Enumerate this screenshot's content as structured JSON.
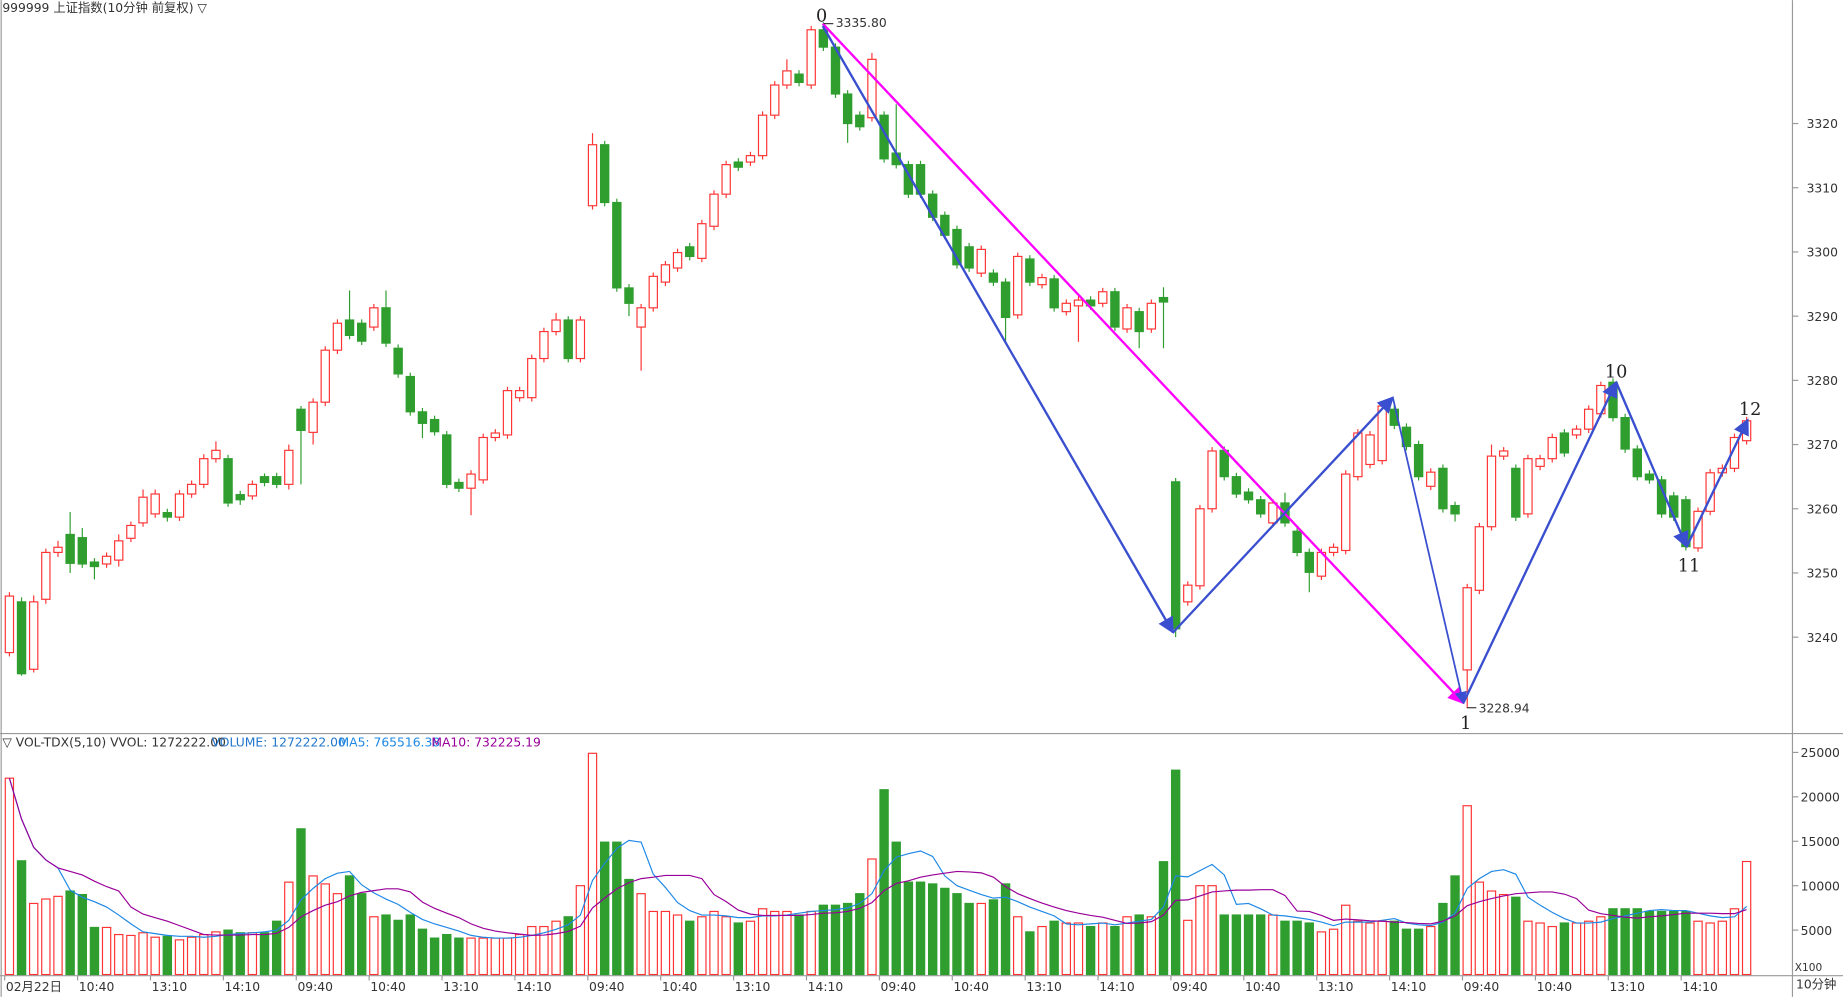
{
  "chart_data": [
    {
      "type": "candlestick",
      "title": "999999 上证指数(10分钟 前复权) ▽",
      "categories": [
        "02月22日",
        null,
        null,
        null,
        null,
        null,
        "10:40",
        null,
        null,
        null,
        null,
        null,
        "13:10",
        null,
        null,
        null,
        null,
        null,
        "14:10",
        null,
        null,
        null,
        null,
        null,
        "09:40",
        null,
        null,
        null,
        null,
        null,
        "10:40",
        null,
        null,
        null,
        null,
        null,
        "13:10",
        null,
        null,
        null,
        null,
        null,
        "14:10",
        null,
        null,
        null,
        null,
        null,
        "09:40",
        null,
        null,
        null,
        null,
        null,
        "10:40",
        null,
        null,
        null,
        null,
        null,
        "13:10",
        null,
        null,
        null,
        null,
        null,
        "14:10",
        null,
        null,
        null,
        null,
        null,
        "09:40",
        null,
        null,
        null,
        null,
        null,
        "10:40",
        null,
        null,
        null,
        null,
        null,
        "13:10",
        null,
        null,
        null,
        null,
        null,
        "14:10",
        null,
        null,
        null,
        null,
        null,
        "09:40",
        null,
        null,
        null,
        null,
        null,
        "10:40",
        null,
        null,
        null,
        null,
        null,
        "13:10",
        null,
        null,
        null,
        null,
        null,
        "14:10",
        null,
        null,
        null,
        null,
        null,
        "09:40",
        null,
        null,
        null,
        null,
        null,
        "10:40",
        null,
        null,
        null,
        null,
        null,
        "13:10",
        null,
        null,
        null,
        null,
        null,
        "14:10",
        null,
        null,
        null,
        null,
        null
      ],
      "open": [
        3237.6,
        3245.5,
        3235.0,
        3245.9,
        3253.2,
        3256.0,
        3255.5,
        3251.7,
        3251.4,
        3252.0,
        3255.4,
        3257.8,
        3259.2,
        3259.4,
        3258.7,
        3262.3,
        3263.8,
        3267.8,
        3267.8,
        3262.2,
        3262.0,
        3265.0,
        3265.0,
        3263.8,
        3275.5,
        3271.9,
        3276.6,
        3284.7,
        3289.4,
        3288.9,
        3288.3,
        3291.3,
        3285.0,
        3280.6,
        3275.1,
        3273.9,
        3271.5,
        3264.1,
        3263.2,
        3264.5,
        3271.1,
        3271.5,
        3277.3,
        3277.3,
        3283.4,
        3287.6,
        3289.4,
        3283.4,
        3307.2,
        3316.7,
        3307.7,
        3294.4,
        3288.3,
        3291.3,
        3295.3,
        3297.5,
        3300.8,
        3299.0,
        3304.0,
        3309.0,
        3314.0,
        3314.0,
        3315.0,
        3321.3,
        3326.0,
        3327.7,
        3326.0,
        3334.6,
        3331.9,
        3324.6,
        3321.3,
        3320.9,
        3321.3,
        3315.4,
        3313.6,
        3313.6,
        3309.0,
        3305.7,
        3303.5,
        3300.8,
        3296.7,
        3296.7,
        3295.3,
        3290.2,
        3298.9,
        3294.9,
        3295.8,
        3290.7,
        3291.6,
        3292.5,
        3292.0,
        3293.8,
        3288.0,
        3290.7,
        3288.0,
        3292.9,
        3264.2,
        3245.5,
        3248.0,
        3260.0,
        3269.1,
        3265.0,
        3262.6,
        3261.4,
        3257.8,
        3260.9,
        3256.5,
        3253.2,
        3249.5,
        3253.2,
        3253.5,
        3265.0,
        3266.9,
        3267.5,
        3275.5,
        3272.7,
        3270.0,
        3263.5,
        3266.3,
        3260.5,
        3234.9,
        3247.3,
        3257.2,
        3268.2,
        3266.3,
        3259.2,
        3266.6,
        3267.8,
        3271.8,
        3271.5,
        3272.4,
        3274.8,
        3279.7,
        3274.2,
        3269.3,
        3265.4,
        3264.5,
        3262.0,
        3261.4,
        3253.9,
        3259.6,
        3265.6,
        3266.3,
        3270.6
      ],
      "high": [
        3247.0,
        3246.2,
        3246.5,
        3253.8,
        3255.0,
        3259.5,
        3257.0,
        3252.3,
        3253.2,
        3256.0,
        3258.0,
        3263.0,
        3263.0,
        3260.0,
        3262.9,
        3264.4,
        3268.5,
        3270.5,
        3268.4,
        3262.8,
        3264.4,
        3265.5,
        3265.6,
        3270.0,
        3276.0,
        3277.2,
        3285.3,
        3289.5,
        3294.0,
        3289.5,
        3291.9,
        3294.0,
        3285.6,
        3281.2,
        3275.7,
        3274.5,
        3272.1,
        3264.7,
        3266.0,
        3271.7,
        3272.4,
        3279.0,
        3279.0,
        3284.0,
        3288.2,
        3290.5,
        3290.0,
        3290.0,
        3318.5,
        3317.3,
        3308.3,
        3295.0,
        3291.9,
        3296.8,
        3298.6,
        3300.5,
        3301.4,
        3305.0,
        3309.6,
        3314.2,
        3314.6,
        3315.6,
        3321.9,
        3326.6,
        3330.0,
        3328.3,
        3335.2,
        3335.8,
        3332.5,
        3325.2,
        3321.9,
        3331.0,
        3321.9,
        3323.0,
        3314.2,
        3314.2,
        3309.6,
        3306.3,
        3304.1,
        3301.4,
        3301.0,
        3297.3,
        3295.9,
        3299.9,
        3299.5,
        3296.6,
        3296.4,
        3292.6,
        3293.1,
        3293.1,
        3294.4,
        3294.4,
        3291.9,
        3291.3,
        3292.6,
        3294.5,
        3264.8,
        3248.7,
        3260.6,
        3269.6,
        3269.7,
        3265.6,
        3263.2,
        3262.0,
        3261.5,
        3262.5,
        3257.1,
        3253.8,
        3253.8,
        3254.6,
        3266.0,
        3272.4,
        3272.1,
        3276.6,
        3276.1,
        3273.3,
        3270.6,
        3266.3,
        3266.9,
        3261.1,
        3248.3,
        3257.8,
        3270.0,
        3269.6,
        3266.9,
        3268.4,
        3268.4,
        3271.7,
        3272.4,
        3273.0,
        3276.1,
        3279.8,
        3280.3,
        3274.8,
        3269.9,
        3266.0,
        3265.1,
        3262.6,
        3262.0,
        3260.2,
        3266.2,
        3266.9,
        3271.7,
        3274.3
      ],
      "low": [
        3237.0,
        3234.0,
        3234.5,
        3245.2,
        3252.5,
        3250.0,
        3250.8,
        3249.0,
        3250.8,
        3251.0,
        3254.8,
        3257.2,
        3258.6,
        3258.0,
        3258.1,
        3261.7,
        3263.2,
        3267.2,
        3260.3,
        3260.6,
        3261.4,
        3263.5,
        3263.2,
        3263.0,
        3263.8,
        3270.0,
        3276.0,
        3284.1,
        3286.4,
        3285.5,
        3287.7,
        3285.2,
        3280.4,
        3274.5,
        3271.0,
        3271.4,
        3263.2,
        3262.6,
        3259.0,
        3263.9,
        3270.5,
        3270.9,
        3276.7,
        3276.7,
        3282.8,
        3287.0,
        3282.8,
        3282.8,
        3306.6,
        3307.1,
        3293.8,
        3290.0,
        3281.5,
        3290.7,
        3294.7,
        3296.9,
        3298.7,
        3298.4,
        3303.4,
        3308.4,
        3312.6,
        3313.4,
        3314.4,
        3320.7,
        3325.4,
        3325.8,
        3325.4,
        3331.3,
        3324.0,
        3317.0,
        3318.9,
        3320.3,
        3313.9,
        3313.0,
        3308.4,
        3308.4,
        3304.8,
        3302.0,
        3297.4,
        3296.9,
        3296.1,
        3294.7,
        3286.0,
        3289.6,
        3294.7,
        3294.3,
        3290.7,
        3290.1,
        3286.0,
        3291.0,
        3291.4,
        3287.7,
        3287.4,
        3285.0,
        3287.4,
        3285.0,
        3240.0,
        3244.9,
        3247.4,
        3259.4,
        3264.4,
        3261.7,
        3260.8,
        3258.6,
        3257.2,
        3257.2,
        3252.6,
        3247.0,
        3248.9,
        3252.6,
        3252.9,
        3264.4,
        3266.3,
        3266.9,
        3272.4,
        3269.1,
        3264.4,
        3262.9,
        3259.4,
        3258.0,
        3228.94,
        3246.7,
        3256.6,
        3267.6,
        3258.1,
        3258.6,
        3266.0,
        3267.2,
        3268.1,
        3270.9,
        3271.8,
        3274.2,
        3273.6,
        3268.7,
        3264.4,
        3263.9,
        3258.6,
        3258.1,
        3253.5,
        3253.3,
        3259.0,
        3265.0,
        3265.7,
        3270.0
      ],
      "close": [
        3246.4,
        3234.3,
        3245.5,
        3253.2,
        3254.0,
        3251.5,
        3251.4,
        3251.0,
        3252.6,
        3255.0,
        3257.4,
        3261.8,
        3262.3,
        3258.7,
        3262.3,
        3263.8,
        3267.8,
        3269.1,
        3260.9,
        3261.4,
        3263.8,
        3264.1,
        3263.8,
        3269.1,
        3272.2,
        3276.6,
        3284.7,
        3288.9,
        3287.0,
        3286.1,
        3291.3,
        3285.8,
        3281.0,
        3275.1,
        3273.3,
        3272.0,
        3263.8,
        3263.2,
        3265.4,
        3271.1,
        3271.8,
        3278.4,
        3278.4,
        3283.4,
        3287.6,
        3289.4,
        3283.4,
        3289.4,
        3316.7,
        3307.7,
        3294.4,
        3292.0,
        3291.3,
        3296.2,
        3298.0,
        3299.9,
        3299.3,
        3304.4,
        3309.0,
        3313.6,
        3313.2,
        3315.0,
        3321.3,
        3326.0,
        3328.2,
        3326.4,
        3334.6,
        3331.9,
        3324.6,
        3320.0,
        3319.5,
        3330.0,
        3314.5,
        3313.6,
        3309.0,
        3309.0,
        3305.4,
        3302.6,
        3298.0,
        3297.5,
        3300.4,
        3295.3,
        3289.8,
        3299.3,
        3295.3,
        3296.0,
        3291.3,
        3292.0,
        3292.5,
        3291.6,
        3293.8,
        3288.3,
        3291.3,
        3287.6,
        3292.0,
        3292.2,
        3241.3,
        3248.1,
        3260.0,
        3269.0,
        3265.0,
        3262.3,
        3261.4,
        3259.2,
        3260.9,
        3257.8,
        3253.2,
        3250.1,
        3253.2,
        3254.0,
        3265.4,
        3271.8,
        3271.5,
        3276.0,
        3273.0,
        3269.7,
        3265.0,
        3265.7,
        3260.0,
        3259.2,
        3247.7,
        3257.2,
        3268.2,
        3269.0,
        3258.7,
        3267.8,
        3267.8,
        3271.1,
        3268.7,
        3272.4,
        3275.5,
        3279.2,
        3274.2,
        3269.3,
        3265.0,
        3264.5,
        3259.2,
        3258.7,
        3254.1,
        3259.6,
        3265.6,
        3266.3,
        3271.1,
        3273.7
      ],
      "up_color": "#ff3333",
      "down_color": "#2f9e2f",
      "ylim": [
        3225.35,
        3339.22
      ],
      "yticks": [
        3240,
        3250,
        3260,
        3270,
        3280,
        3290,
        3300,
        3310,
        3320
      ],
      "annotations": [
        "3335.80",
        "3228.94"
      ],
      "wave_labels": [
        "0",
        "1",
        "10",
        "11",
        "12"
      ],
      "period_label": "10分钟"
    },
    {
      "type": "bar",
      "title": "▽ VOL-TDX(5,10) VVOL: 1272222.00",
      "volume_label": "VOLUME: 1272222.00",
      "values": [
        22100,
        12800,
        8000,
        8500,
        8800,
        9400,
        9000,
        5300,
        5300,
        4500,
        4400,
        4700,
        4200,
        4300,
        3900,
        4200,
        4500,
        4800,
        5000,
        4700,
        4700,
        4700,
        6000,
        10400,
        16400,
        11100,
        10200,
        9100,
        11100,
        9100,
        6500,
        6700,
        6100,
        6700,
        5100,
        4100,
        4500,
        4100,
        4100,
        4100,
        4100,
        4100,
        4500,
        5400,
        5400,
        6000,
        6500,
        10000,
        24900,
        14900,
        14900,
        10700,
        9100,
        7100,
        7100,
        6700,
        6000,
        6500,
        7100,
        6500,
        5800,
        6000,
        7400,
        7100,
        7100,
        6700,
        7100,
        7800,
        7800,
        8000,
        9100,
        13000,
        20800,
        14900,
        10400,
        10400,
        10200,
        9700,
        9100,
        8000,
        8000,
        8400,
        10200,
        6500,
        4800,
        5400,
        6000,
        5800,
        5800,
        5400,
        5800,
        5400,
        6500,
        6700,
        6500,
        12700,
        23000,
        6100,
        10000,
        10000,
        6700,
        6700,
        6700,
        6700,
        6700,
        6000,
        6000,
        5800,
        4800,
        5100,
        7800,
        6000,
        5800,
        6000,
        6000,
        5100,
        5100,
        5400,
        8000,
        11100,
        19000,
        10400,
        9400,
        9000,
        8700,
        6000,
        5800,
        5400,
        5800,
        5800,
        6000,
        6500,
        7400,
        7400,
        7400,
        7100,
        7100,
        7100,
        7100,
        6000,
        5800,
        6000,
        7400,
        12722
      ],
      "series": [
        {
          "name": "MA5: 765516.38",
          "color": "#1e88e5",
          "values": [
            22100,
            17500,
            14300,
            12900,
            12000,
            9500,
            8700,
            8200,
            7600,
            6700,
            5700,
            4800,
            4600,
            4400,
            4300,
            4300,
            4200,
            4300,
            4500,
            4600,
            4700,
            4800,
            5000,
            6100,
            8400,
            9700,
            10800,
            11400,
            11600,
            10100,
            9200,
            8500,
            7900,
            7000,
            6200,
            5700,
            5300,
            4900,
            4400,
            4200,
            4100,
            4100,
            4200,
            4400,
            4700,
            5100,
            5600,
            6700,
            10600,
            12500,
            14200,
            15100,
            14900,
            11300,
            9800,
            8100,
            7200,
            6700,
            6700,
            6600,
            6400,
            6400,
            6600,
            6600,
            6700,
            6900,
            7100,
            7200,
            7300,
            7500,
            8000,
            9100,
            11700,
            13200,
            13600,
            13900,
            13300,
            11100,
            10000,
            9500,
            9000,
            8600,
            8700,
            8200,
            7600,
            7100,
            6600,
            5700,
            5600,
            5700,
            5800,
            5600,
            5800,
            6000,
            6200,
            7600,
            11100,
            11000,
            11700,
            12400,
            11200,
            7900,
            8000,
            7400,
            6700,
            6600,
            6400,
            6200,
            5900,
            5500,
            5900,
            5900,
            5900,
            6100,
            6300,
            5800,
            5600,
            5500,
            5900,
            6900,
            9700,
            10800,
            11600,
            11800,
            11300,
            8700,
            7800,
            7000,
            6300,
            5800,
            5800,
            5900,
            6300,
            6600,
            6900,
            7200,
            7300,
            7200,
            7200,
            6900,
            6600,
            6400,
            6500,
            7655.16
          ]
        },
        {
          "name": "MA10: 732225.19",
          "color": "#990099",
          "values": [
            22100,
            17500,
            14300,
            12900,
            12000,
            11600,
            11200,
            10500,
            9900,
            9400,
            7600,
            6800,
            6400,
            6000,
            5500,
            5000,
            4500,
            4450,
            4450,
            4450,
            4500,
            4500,
            4650,
            5300,
            6500,
            7200,
            7800,
            8200,
            8850,
            9250,
            9450,
            9650,
            9650,
            9300,
            8150,
            7450,
            6900,
            6400,
            5700,
            5200,
            4900,
            4700,
            4550,
            4400,
            4450,
            4600,
            4850,
            5450,
            7500,
            8600,
            9650,
            10350,
            10800,
            10950,
            11150,
            11150,
            11150,
            10800,
            9000,
            8200,
            7250,
            6800,
            6650,
            6650,
            6650,
            6650,
            6750,
            6900,
            6950,
            7100,
            7450,
            8100,
            9450,
            10250,
            10550,
            10950,
            11200,
            11400,
            11600,
            11550,
            11450,
            10950,
            9900,
            9100,
            8550,
            8050,
            7600,
            7200,
            6900,
            6650,
            6450,
            6100,
            5750,
            5800,
            5950,
            6700,
            8350,
            8400,
            8850,
            9300,
            9400,
            9500,
            9500,
            9550,
            9550,
            8900,
            7150,
            7100,
            6650,
            6100,
            6250,
            6150,
            6050,
            6000,
            5900,
            5850,
            5750,
            5700,
            6000,
            6600,
            7750,
            8200,
            8550,
            8850,
            9100,
            9200,
            9300,
            9300,
            9050,
            8550,
            7250,
            6850,
            6650,
            6450,
            6350,
            6500,
            6600,
            6750,
            6900,
            6900,
            6900,
            6850,
            6850,
            7322.25
          ]
        }
      ],
      "ylim": [
        0,
        25930
      ],
      "yticks": [
        5000,
        10000,
        15000,
        20000,
        25000
      ],
      "unit_label": "X100"
    }
  ]
}
